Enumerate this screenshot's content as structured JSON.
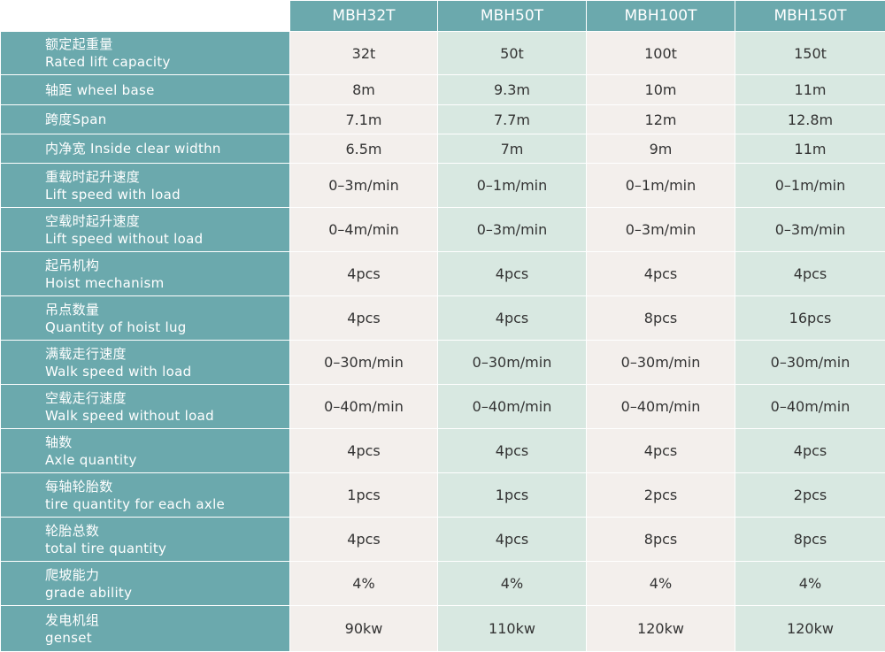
{
  "table": {
    "models": [
      "MBH32T",
      "MBH50T",
      "MBH100T",
      "MBH150T"
    ],
    "rows": [
      {
        "zh": "额定起重量",
        "en": "Rated lift capacity",
        "values": [
          "32t",
          "50t",
          "100t",
          "150t"
        ]
      },
      {
        "zh": "轴距",
        "en": "wheel base",
        "values": [
          "8m",
          "9.3m",
          "10m",
          "11m"
        ]
      },
      {
        "zh": "跨度",
        "en": "Span",
        "values": [
          "7.1m",
          "7.7m",
          "12m",
          "12.8m"
        ]
      },
      {
        "zh": "内净宽",
        "en": "Inside clear widthn",
        "values": [
          "6.5m",
          "7m",
          "9m",
          "11m"
        ]
      },
      {
        "zh": "重载时起升速度",
        "en": "Lift speed with load",
        "values": [
          "0–3m/min",
          "0–1m/min",
          "0–1m/min",
          "0–1m/min"
        ]
      },
      {
        "zh": "空载时起升速度",
        "en": "Lift speed without load",
        "values": [
          "0–4m/min",
          "0–3m/min",
          "0–3m/min",
          "0–3m/min"
        ]
      },
      {
        "zh": "起吊机构",
        "en": "Hoist mechanism",
        "values": [
          "4pcs",
          "4pcs",
          "4pcs",
          "4pcs"
        ]
      },
      {
        "zh": "吊点数量",
        "en": "Quantity of hoist lug",
        "values": [
          "4pcs",
          "4pcs",
          "8pcs",
          "16pcs"
        ]
      },
      {
        "zh": "满载走行速度",
        "en": "Walk speed with load",
        "values": [
          "0–30m/min",
          "0–30m/min",
          "0–30m/min",
          "0–30m/min"
        ]
      },
      {
        "zh": "空载走行速度",
        "en": "Walk speed without load",
        "values": [
          "0–40m/min",
          "0–40m/min",
          "0–40m/min",
          "0–40m/min"
        ]
      },
      {
        "zh": "轴数",
        "en": "Axle quantity",
        "values": [
          "4pcs",
          "4pcs",
          "4pcs",
          "4pcs"
        ]
      },
      {
        "zh": "每轴轮胎数",
        "en": "tire quantity for each axle",
        "values": [
          "1pcs",
          "1pcs",
          "2pcs",
          "2pcs"
        ]
      },
      {
        "zh": "轮胎总数",
        "en": "total tire quantity",
        "values": [
          "4pcs",
          "4pcs",
          "8pcs",
          "8pcs"
        ]
      },
      {
        "zh": "爬坡能力",
        "en": "grade ability",
        "values": [
          "4%",
          "4%",
          "4%",
          "4%"
        ]
      },
      {
        "zh": "发电机组",
        "en": "genset",
        "values": [
          "90kw",
          "110kw",
          "120kw",
          "120kw"
        ]
      }
    ]
  },
  "colors": {
    "header_teal": "#6ba9ad",
    "cell_light": "#f3efec",
    "cell_green": "#d8e8e1"
  }
}
